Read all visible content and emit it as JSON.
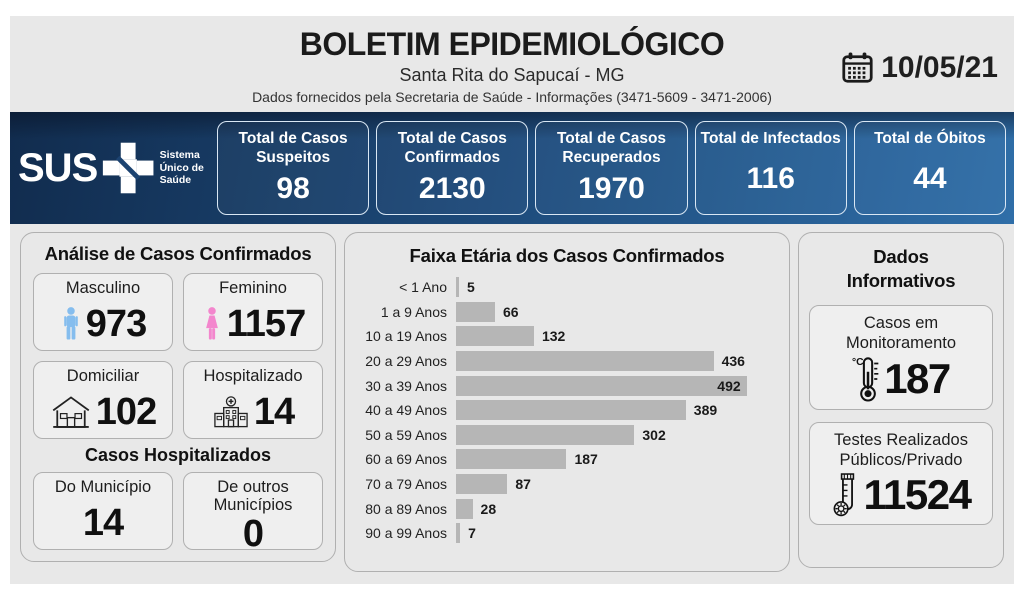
{
  "header": {
    "title": "BOLETIM EPIDEMIOLÓGICO",
    "subtitle": "Santa Rita do Sapucaí - MG",
    "info_line": "Dados fornecidos pela Secretaria de Saúde - Informações (3471-5609 - 3471-2006)",
    "date": "10/05/21"
  },
  "sus_logo": {
    "text": "SUS",
    "tagline": "Sistema Único de Saúde"
  },
  "summary_cards": [
    {
      "label": "Total de Casos Suspeitos",
      "value": "98"
    },
    {
      "label": "Total de Casos Confirmados",
      "value": "2130"
    },
    {
      "label": "Total de Casos Recuperados",
      "value": "1970"
    },
    {
      "label": "Total de Infectados",
      "value": "116"
    },
    {
      "label": "Total de Óbitos",
      "value": "44"
    }
  ],
  "analysis_panel": {
    "title": "Análise de Casos Confirmados",
    "gender_cards": [
      {
        "label": "Masculino",
        "value": "973",
        "icon": "male-icon"
      },
      {
        "label": "Feminino",
        "value": "1157",
        "icon": "female-icon"
      }
    ],
    "location_cards": [
      {
        "label": "Domiciliar",
        "value": "102",
        "icon": "house-icon"
      },
      {
        "label": "Hospitalizado",
        "value": "14",
        "icon": "hospital-icon"
      }
    ],
    "subsection_title": "Casos Hospitalizados",
    "hospital_cards": [
      {
        "label": "Do Município",
        "value": "14"
      },
      {
        "label": "De outros Municípios",
        "value": "0"
      }
    ]
  },
  "chart_data": {
    "type": "bar",
    "orientation": "horizontal",
    "title": "Faixa Etária dos Casos Confirmados",
    "categories": [
      "< 1 Ano",
      "1 a 9 Anos",
      "10 a 19 Anos",
      "20 a 29 Anos",
      "30 a 39 Anos",
      "40 a 49 Anos",
      "50 a 59 Anos",
      "60 a 69 Anos",
      "70 a 79 Anos",
      "80 a 89 Anos",
      "90 a 99 Anos"
    ],
    "values": [
      5,
      66,
      132,
      436,
      492,
      389,
      302,
      187,
      87,
      28,
      7
    ],
    "value_labels": true,
    "grid": false,
    "legend": false,
    "bar_color": "#b6b6b6",
    "xlim": [
      0,
      540
    ]
  },
  "info_panel": {
    "title": "Dados Informativos",
    "cards": [
      {
        "label": "Casos em Monitoramento",
        "value": "187",
        "icon": "thermometer-icon"
      },
      {
        "label": "Testes Realizados Públicos/Privado",
        "value": "11524",
        "icon": "test-tube-icon"
      }
    ]
  },
  "colors": {
    "banner_blue_dark": "#112c4e",
    "banner_blue_mid": "#1d4a7a",
    "banner_blue_light": "#2f6ea8",
    "male_icon": "#85bdee",
    "female_icon": "#f386cd",
    "bar_gray": "#b6b6b6",
    "panel_bg": "#e8e8e8"
  }
}
